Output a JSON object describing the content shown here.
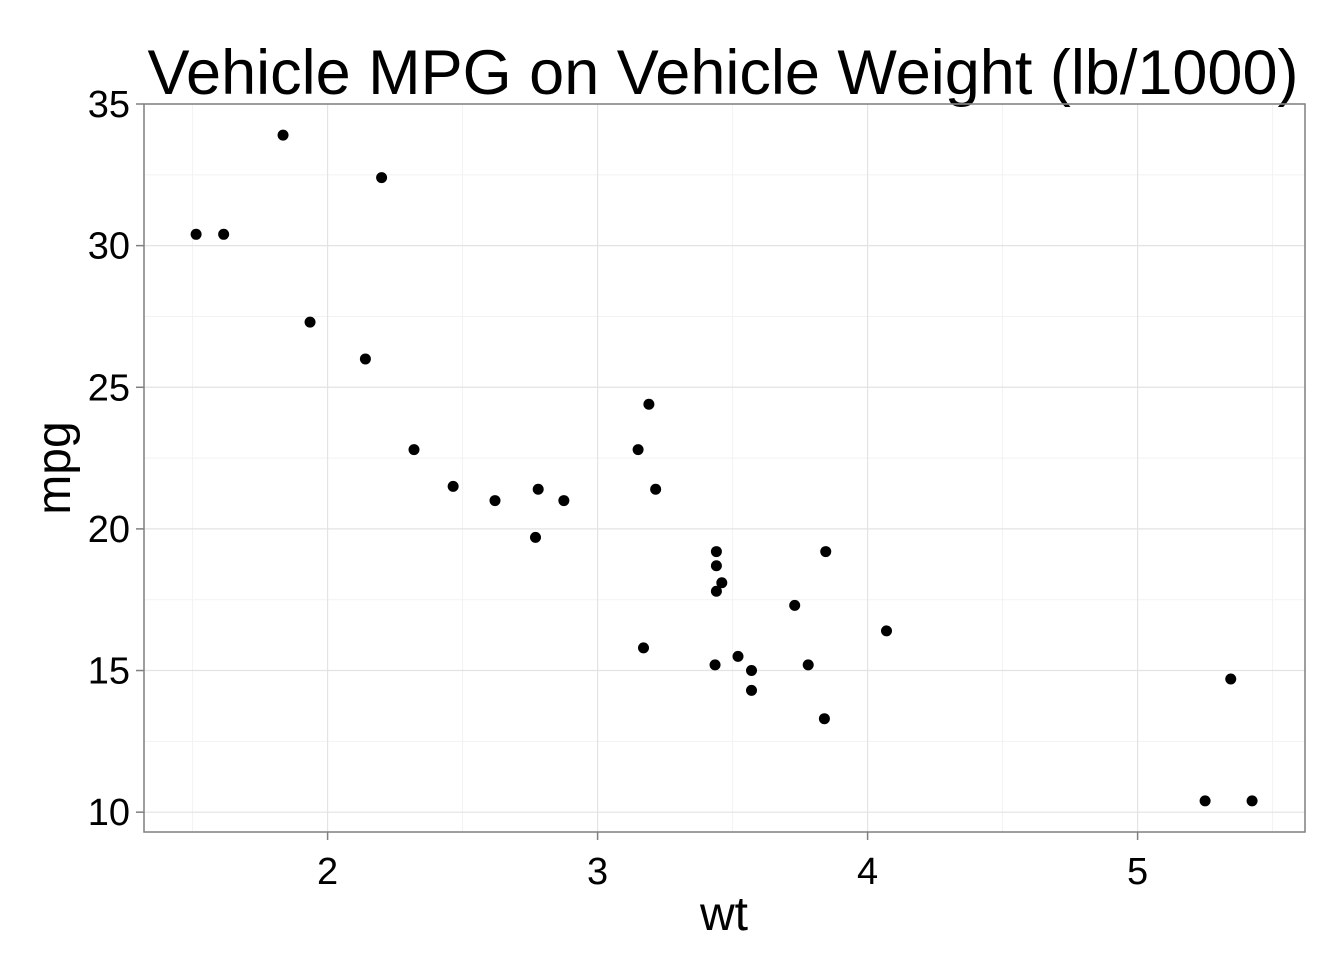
{
  "chart_data": {
    "type": "scatter",
    "title": "Vehicle MPG on Vehicle Weight (lb/1000)",
    "xlabel": "wt",
    "ylabel": "mpg",
    "xlim": [
      1.32,
      5.62
    ],
    "ylim": [
      9.3,
      35.0
    ],
    "xticks": [
      2,
      3,
      4,
      5
    ],
    "yticks": [
      10,
      15,
      20,
      25,
      30,
      35
    ],
    "xtick_labels": [
      "2",
      "3",
      "4",
      "5"
    ],
    "ytick_labels": [
      "10",
      "15",
      "20",
      "25",
      "30",
      "35"
    ],
    "grid": true,
    "point_color": "#000000",
    "points": [
      {
        "x": 2.62,
        "y": 21.0
      },
      {
        "x": 2.875,
        "y": 21.0
      },
      {
        "x": 2.32,
        "y": 22.8
      },
      {
        "x": 3.215,
        "y": 21.4
      },
      {
        "x": 3.44,
        "y": 18.7
      },
      {
        "x": 3.46,
        "y": 18.1
      },
      {
        "x": 3.57,
        "y": 14.3
      },
      {
        "x": 3.19,
        "y": 24.4
      },
      {
        "x": 3.15,
        "y": 22.8
      },
      {
        "x": 3.44,
        "y": 19.2
      },
      {
        "x": 3.44,
        "y": 17.8
      },
      {
        "x": 4.07,
        "y": 16.4
      },
      {
        "x": 3.73,
        "y": 17.3
      },
      {
        "x": 3.78,
        "y": 15.2
      },
      {
        "x": 5.25,
        "y": 10.4
      },
      {
        "x": 5.424,
        "y": 10.4
      },
      {
        "x": 5.345,
        "y": 14.7
      },
      {
        "x": 2.2,
        "y": 32.4
      },
      {
        "x": 1.615,
        "y": 30.4
      },
      {
        "x": 1.835,
        "y": 33.9
      },
      {
        "x": 2.465,
        "y": 21.5
      },
      {
        "x": 3.52,
        "y": 15.5
      },
      {
        "x": 3.435,
        "y": 15.2
      },
      {
        "x": 3.84,
        "y": 13.3
      },
      {
        "x": 3.845,
        "y": 19.2
      },
      {
        "x": 1.935,
        "y": 27.3
      },
      {
        "x": 2.14,
        "y": 26.0
      },
      {
        "x": 1.513,
        "y": 30.4
      },
      {
        "x": 3.17,
        "y": 15.8
      },
      {
        "x": 2.77,
        "y": 19.7
      },
      {
        "x": 3.57,
        "y": 15.0
      },
      {
        "x": 2.78,
        "y": 21.4
      }
    ]
  }
}
